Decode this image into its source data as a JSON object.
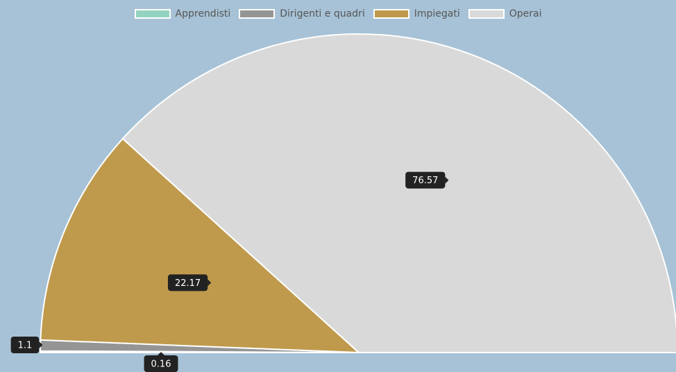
{
  "chart_data": {
    "type": "half-pie",
    "categories": [
      "Apprendisti",
      "Dirigenti e quadri",
      "Impiegati",
      "Operai"
    ],
    "values": [
      0.16,
      1.1,
      22.17,
      76.57
    ],
    "colors": [
      "#93d3bf",
      "#959595",
      "#bf9a4c",
      "#d9d9d9"
    ],
    "legend": "top"
  }
}
